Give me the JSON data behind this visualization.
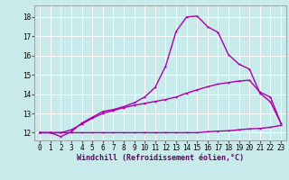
{
  "background_color": "#c8eaea",
  "grid_color": "#ffffff",
  "line_color": "#aa00aa",
  "x_ticks": [
    0,
    1,
    2,
    3,
    4,
    5,
    6,
    7,
    8,
    9,
    10,
    11,
    12,
    13,
    14,
    15,
    16,
    17,
    18,
    19,
    20,
    21,
    22,
    23
  ],
  "y_ticks": [
    12,
    13,
    14,
    15,
    16,
    17,
    18
  ],
  "xlim": [
    -0.5,
    23.5
  ],
  "ylim": [
    11.6,
    18.6
  ],
  "xlabel": "Windchill (Refroidissement éolien,°C)",
  "curve1_x": [
    0,
    1,
    2,
    3,
    4,
    5,
    6,
    7,
    8,
    9,
    10,
    11,
    12,
    13,
    14,
    15,
    16,
    17,
    18,
    19,
    20,
    21,
    22,
    23
  ],
  "curve1_y": [
    12.0,
    12.0,
    11.8,
    12.05,
    12.5,
    12.8,
    13.1,
    13.2,
    13.35,
    13.55,
    13.85,
    14.35,
    15.45,
    17.25,
    18.0,
    18.05,
    17.5,
    17.2,
    16.05,
    15.55,
    15.3,
    14.05,
    13.6,
    12.5
  ],
  "curve2_x": [
    0,
    1,
    2,
    3,
    4,
    5,
    6,
    7,
    8,
    9,
    10,
    11,
    12,
    13,
    14,
    15,
    16,
    17,
    18,
    19,
    20,
    21,
    22,
    23
  ],
  "curve2_y": [
    12.0,
    12.0,
    12.0,
    12.15,
    12.45,
    12.75,
    13.0,
    13.15,
    13.3,
    13.42,
    13.52,
    13.62,
    13.72,
    13.85,
    14.05,
    14.22,
    14.38,
    14.52,
    14.6,
    14.68,
    14.72,
    14.1,
    13.85,
    12.5
  ],
  "curve3_x": [
    0,
    1,
    2,
    3,
    4,
    5,
    6,
    7,
    8,
    9,
    10,
    11,
    12,
    13,
    14,
    15,
    16,
    17,
    18,
    19,
    20,
    21,
    22,
    23
  ],
  "curve3_y": [
    12.0,
    12.0,
    12.0,
    12.0,
    12.0,
    12.0,
    12.0,
    12.0,
    12.0,
    12.0,
    12.0,
    12.0,
    12.0,
    12.0,
    12.0,
    12.0,
    12.05,
    12.08,
    12.1,
    12.15,
    12.2,
    12.22,
    12.28,
    12.38
  ],
  "tick_fontsize": 5.5,
  "xlabel_fontsize": 6.0,
  "linewidth": 1.0,
  "markersize": 2.5
}
